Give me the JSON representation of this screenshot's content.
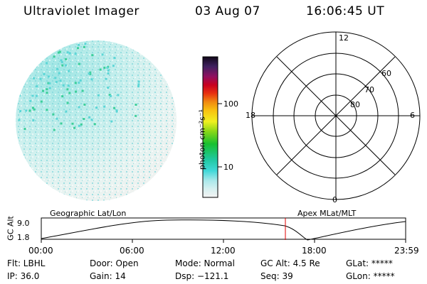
{
  "header": {
    "title": "Ultraviolet Imager",
    "date": "03 Aug 07",
    "time": "16:06:45 UT"
  },
  "colorbar": {
    "label": "photon cm⁻²s⁻¹",
    "ticks": [
      "100",
      "10"
    ]
  },
  "polar_plot": {
    "mlt_labels": [
      "12",
      "18",
      "6",
      "0"
    ],
    "lat_labels": [
      "60",
      "70",
      "80"
    ]
  },
  "timeline": {
    "left_label": "Geographic Lat/Lon",
    "right_label": "Apex MLat/MLT",
    "axis_title": "GC Alt",
    "y_ticks": [
      "9.0",
      "1.8"
    ],
    "x_ticks": [
      "00:00",
      "06:00",
      "12:00",
      "18:00",
      "23:59"
    ],
    "marker_color": "#e00000"
  },
  "status": {
    "filter": "Flt: LBHL",
    "ip": "IP: 36.0",
    "door": "Door: Open",
    "gain": "Gain: 14",
    "mode": "Mode: Normal",
    "dsp": "Dsp: −121.1",
    "gc_alt": "GC Alt: 4.5 Re",
    "seq": "Seq: 39",
    "glat": "GLat: *****",
    "glon": "GLon: *****"
  }
}
